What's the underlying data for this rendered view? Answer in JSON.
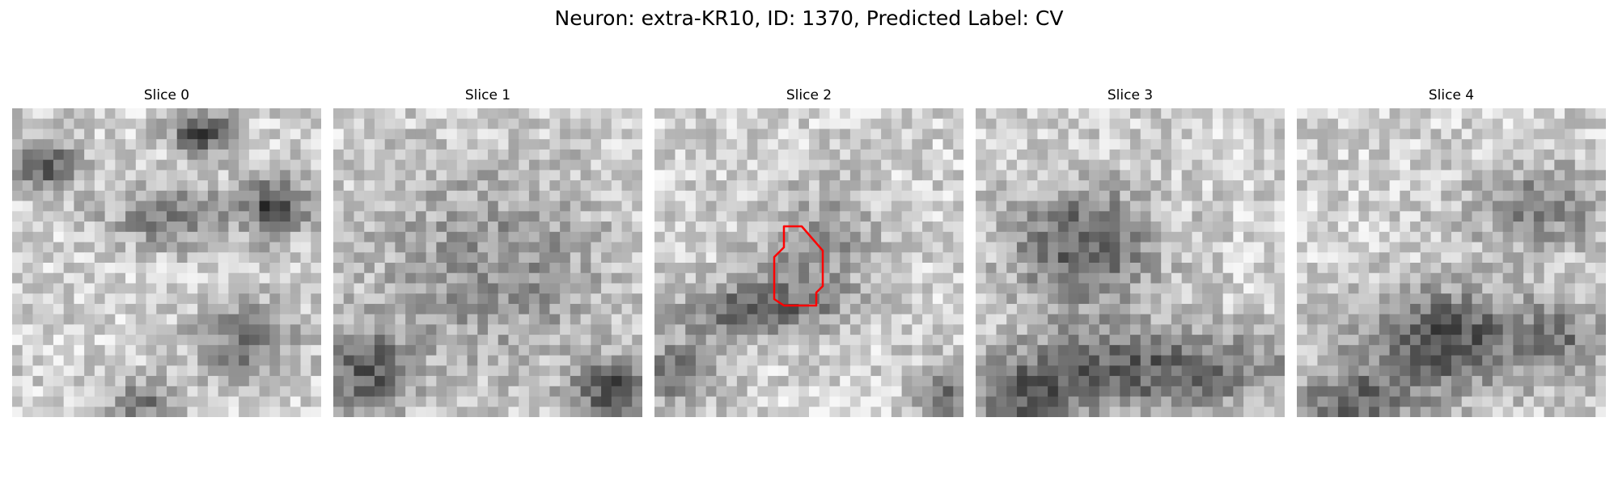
{
  "figure": {
    "title": "Neuron: extra-KR10, ID: 1370, Predicted Label: CV"
  },
  "panels": [
    {
      "title": "Slice 0",
      "image": "grayscale-microscopy-slice",
      "seed": 11
    },
    {
      "title": "Slice 1",
      "image": "grayscale-microscopy-slice",
      "seed": 23
    },
    {
      "title": "Slice 2",
      "image": "grayscale-microscopy-slice-with-red-contour",
      "seed": 37
    },
    {
      "title": "Slice 3",
      "image": "grayscale-microscopy-slice",
      "seed": 53
    },
    {
      "title": "Slice 4",
      "image": "grayscale-microscopy-slice",
      "seed": 71
    }
  ],
  "colors": {
    "background": "#ffffff",
    "contour": "#ff0000",
    "text": "#000000"
  }
}
